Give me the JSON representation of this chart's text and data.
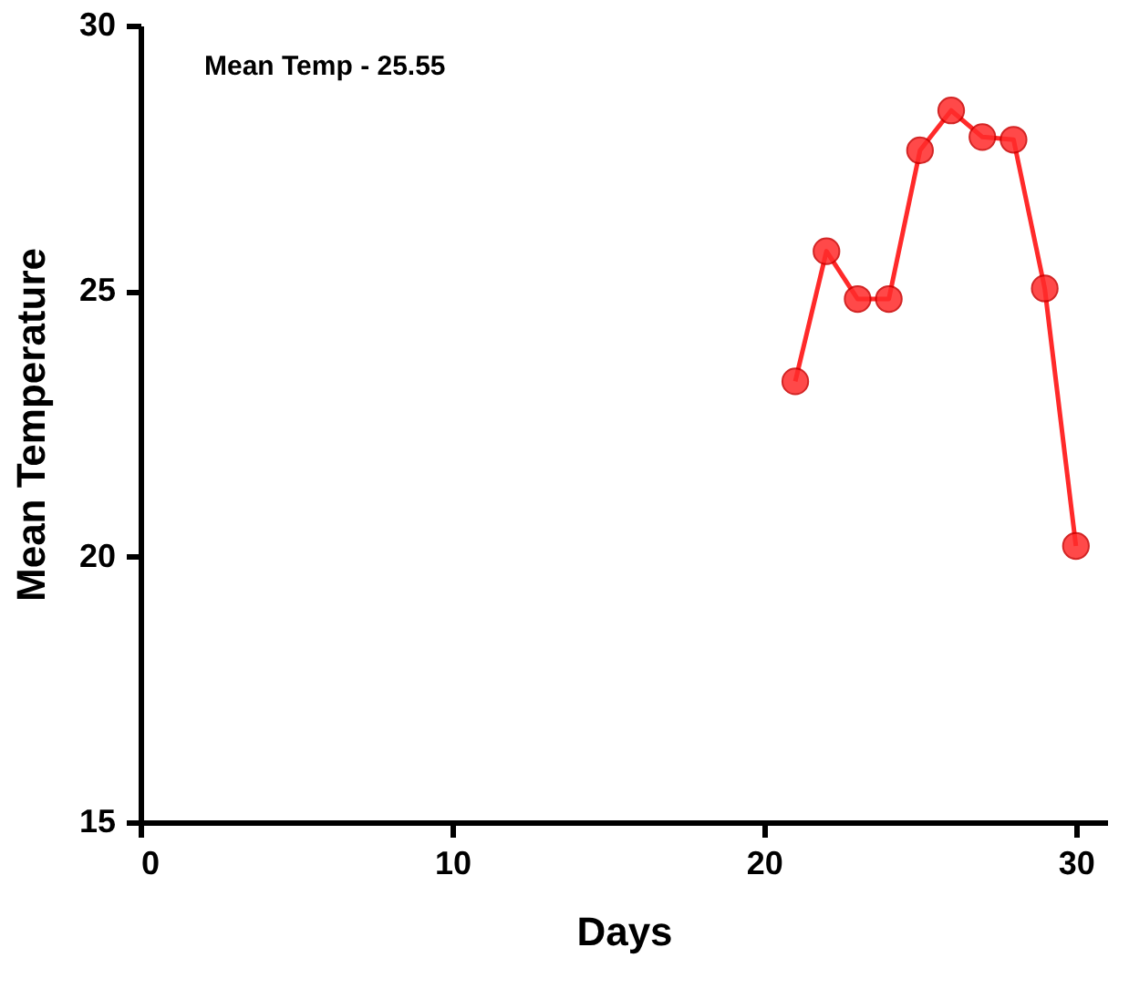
{
  "chart_data": {
    "type": "line",
    "xlabel": "Days",
    "ylabel": "Mean Temperature",
    "annotations": [
      "Mean Temp - 25.55"
    ],
    "x": [
      21,
      22,
      23,
      24,
      25,
      26,
      27,
      28,
      29,
      30
    ],
    "series": [
      {
        "color": "#ff2a2a",
        "values": [
          23.3,
          25.75,
          24.85,
          24.85,
          27.65,
          28.4,
          27.9,
          27.85,
          25.05,
          20.2
        ]
      }
    ],
    "xlim": [
      0,
      31
    ],
    "xticks": [
      0,
      10,
      20,
      30
    ],
    "ylim": [
      15,
      30
    ],
    "yticks": [
      15,
      20,
      25,
      30
    ],
    "grid": false,
    "legend": false,
    "marker": "circle",
    "line_style": "solid"
  }
}
